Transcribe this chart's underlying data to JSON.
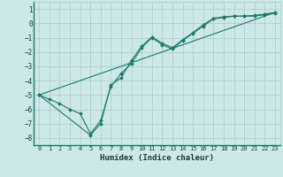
{
  "title": "",
  "xlabel": "Humidex (Indice chaleur)",
  "bg_color": "#cce8e8",
  "grid_color": "#aacccc",
  "line_color": "#1a7a6a",
  "xlim": [
    -0.5,
    23.5
  ],
  "ylim": [
    -8.5,
    1.5
  ],
  "xticks": [
    0,
    1,
    2,
    3,
    4,
    5,
    6,
    7,
    8,
    9,
    10,
    11,
    12,
    13,
    14,
    15,
    16,
    17,
    18,
    19,
    20,
    21,
    22,
    23
  ],
  "yticks": [
    1,
    0,
    -1,
    -2,
    -3,
    -4,
    -5,
    -6,
    -7,
    -8
  ],
  "series1_x": [
    0,
    1,
    2,
    3,
    4,
    5,
    6,
    7,
    8,
    9,
    10,
    11,
    12,
    13,
    14,
    15,
    16,
    17,
    18,
    19,
    20,
    21,
    22,
    23
  ],
  "series1_y": [
    -5.0,
    -5.3,
    -5.6,
    -6.0,
    -6.3,
    -7.7,
    -6.8,
    -4.4,
    -3.5,
    -2.8,
    -1.7,
    -1.0,
    -1.5,
    -1.8,
    -1.2,
    -0.7,
    -0.2,
    0.3,
    0.4,
    0.5,
    0.5,
    0.5,
    0.6,
    0.7
  ],
  "series2_x": [
    0,
    5,
    6,
    7,
    8,
    9,
    10,
    11,
    12,
    13,
    14,
    15,
    16,
    17,
    18,
    19,
    20,
    21,
    22,
    23
  ],
  "series2_y": [
    -5.0,
    -7.8,
    -7.0,
    -4.3,
    -3.8,
    -2.6,
    -1.6,
    -0.95,
    -1.4,
    -1.7,
    -1.15,
    -0.65,
    -0.1,
    0.35,
    0.45,
    0.5,
    0.5,
    0.55,
    0.65,
    0.75
  ],
  "series3_x": [
    0,
    23
  ],
  "series3_y": [
    -5.0,
    0.75
  ],
  "xlabel_fontsize": 6.5,
  "tick_fontsize": 5.0,
  "marker_size": 2.0,
  "line_width": 0.8
}
